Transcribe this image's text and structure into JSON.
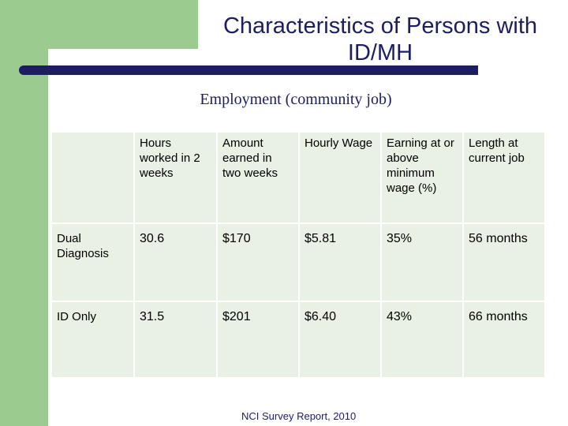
{
  "title": "Characteristics of Persons with ID/MH",
  "subtitle": "Employment (community job)",
  "table": {
    "headers": [
      "",
      "Hours worked in 2 weeks",
      "Amount earned in two weeks",
      "Hourly Wage",
      "Earning at or above minimum wage (%)",
      "Length at current job"
    ],
    "rows": [
      {
        "label": "Dual Diagnosis",
        "hours": "30.6",
        "amount": "$170",
        "wage": "$5.81",
        "min_wage": "35%",
        "length": "56 months"
      },
      {
        "label": "ID Only",
        "hours": "31.5",
        "amount": "$201",
        "wage": "$6.40",
        "min_wage": "43%",
        "length": "66 months"
      }
    ]
  },
  "footer": "NCI Survey Report, 2010",
  "colors": {
    "accent_green": "#9ccb8f",
    "cell_bg": "#e8f1e3",
    "navy": "#1c1d63"
  }
}
